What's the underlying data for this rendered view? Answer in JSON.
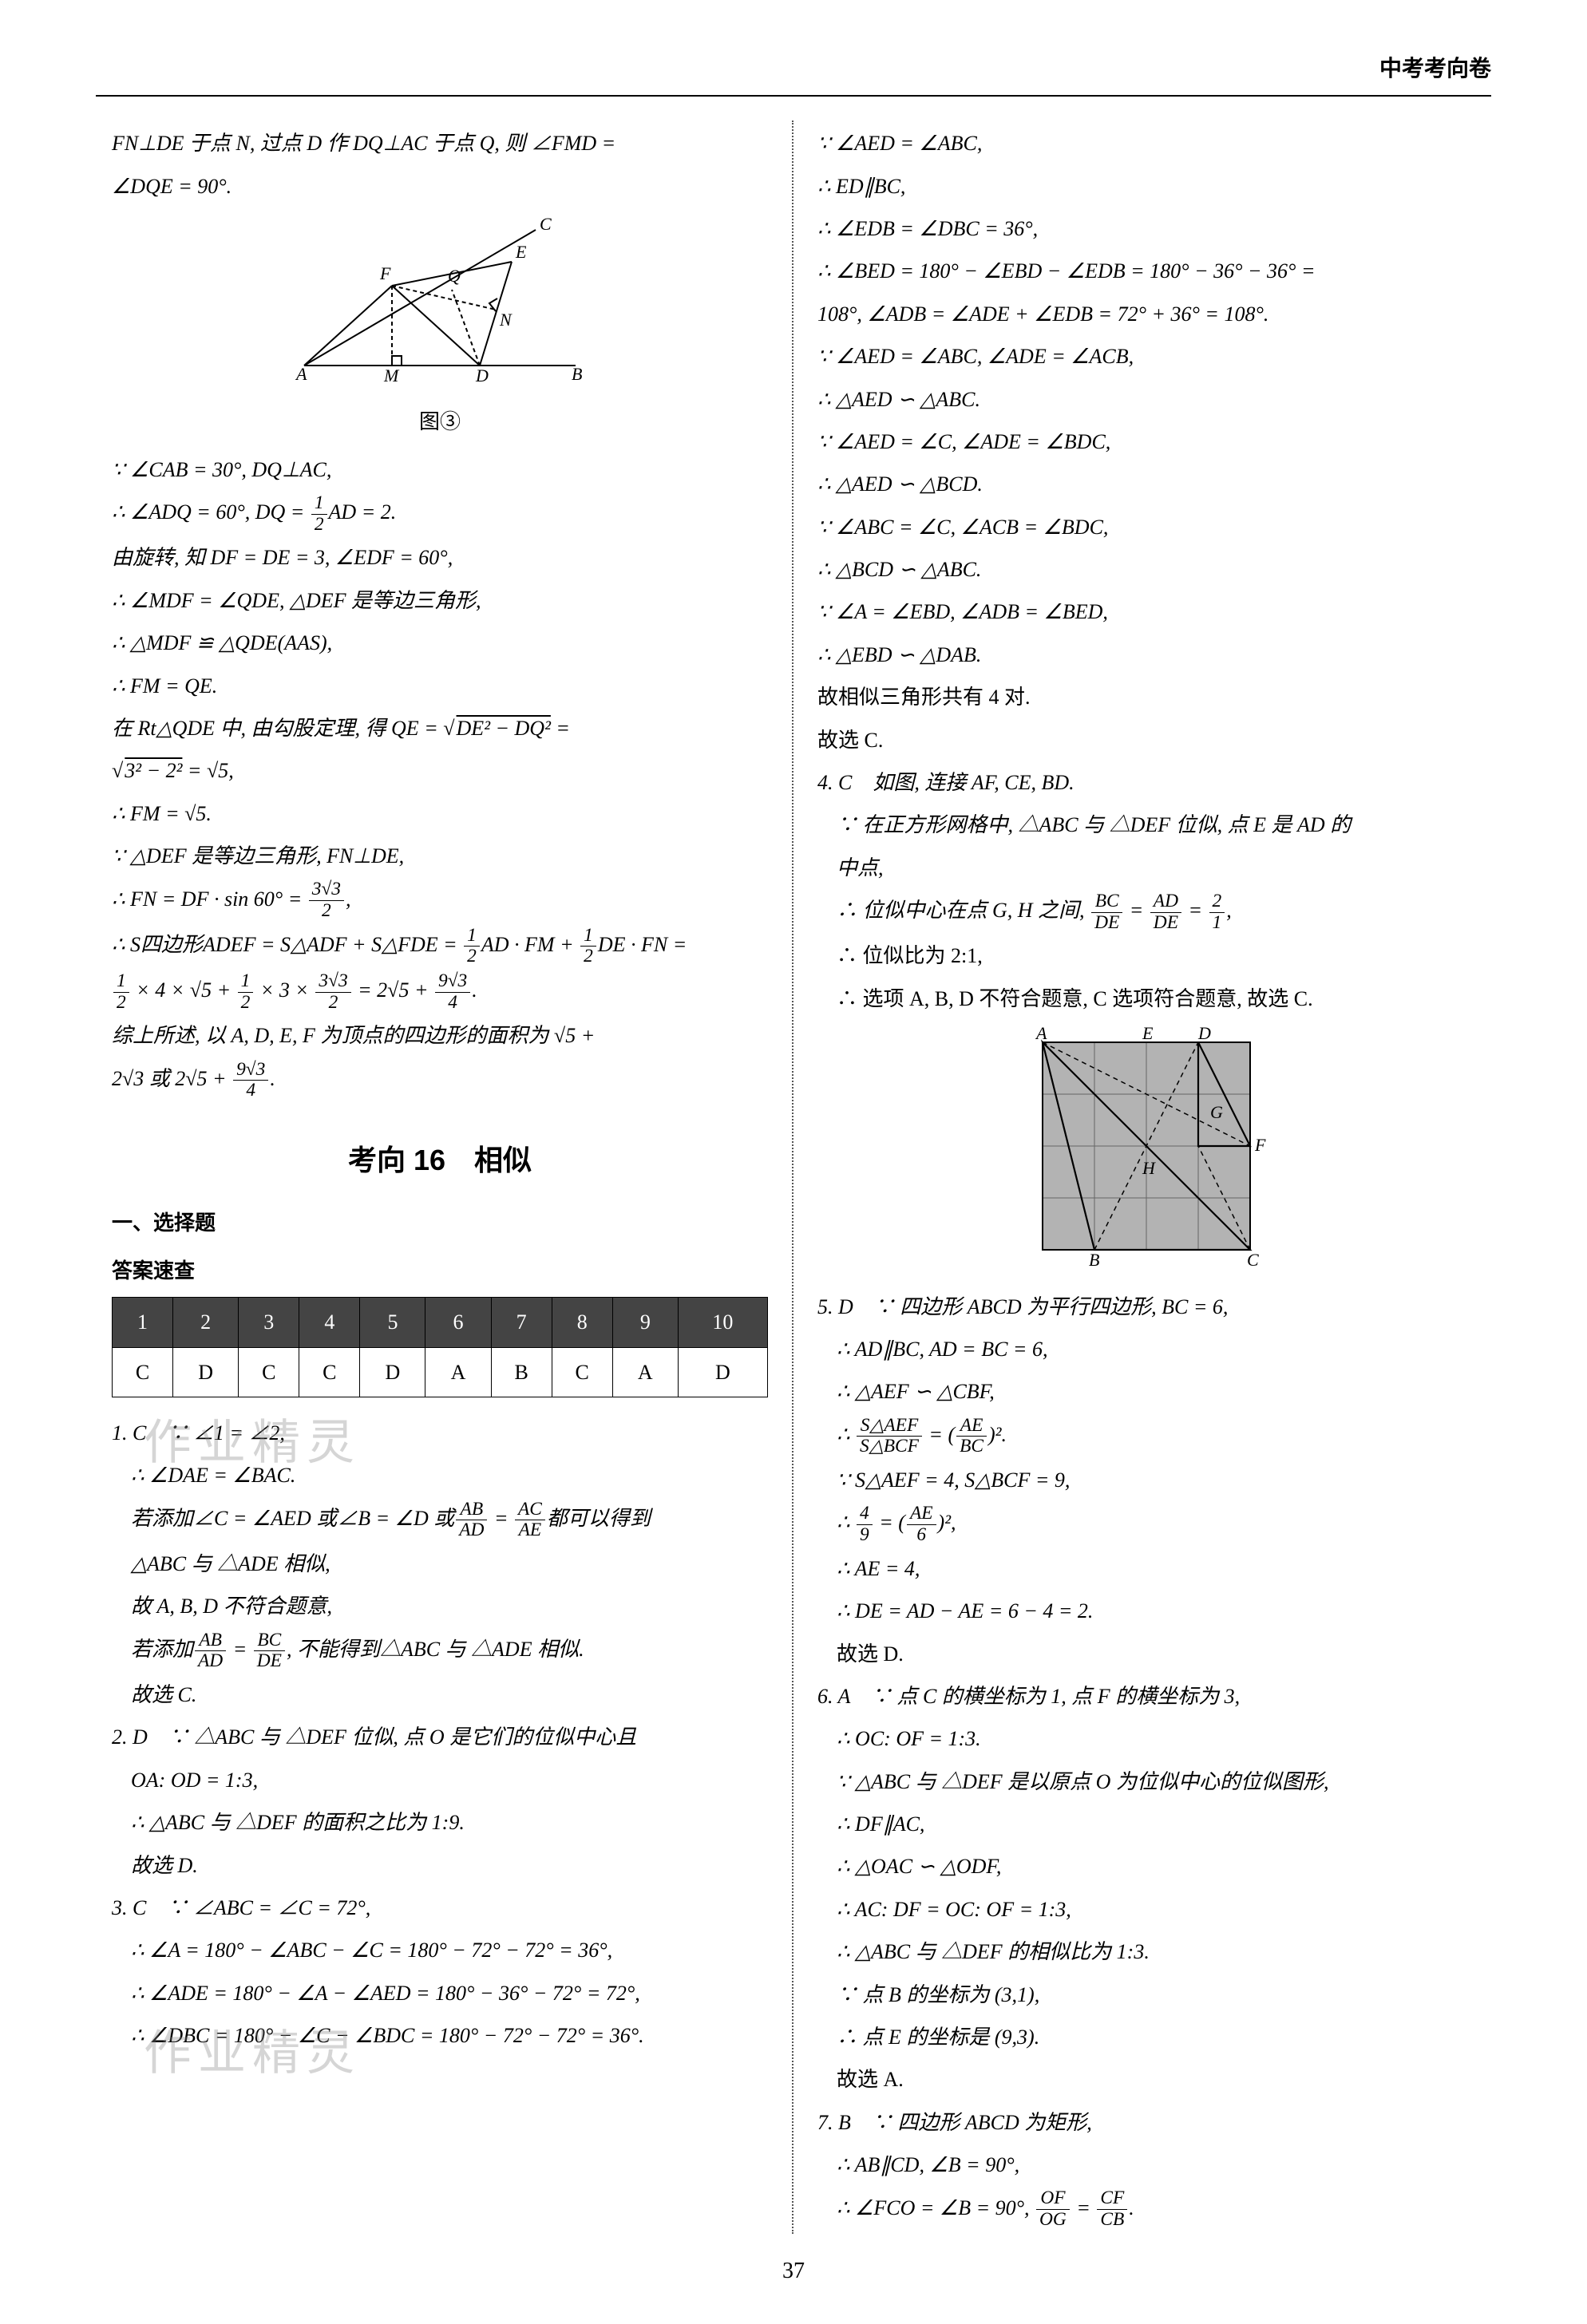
{
  "header": {
    "title": "中考考向卷"
  },
  "page_number": "37",
  "left": {
    "intro1": "FN⊥DE 于点 N, 过点 D 作 DQ⊥AC 于点 Q, 则 ∠FMD =",
    "intro2": "∠DQE = 90°.",
    "fig_label": "图③",
    "p1": "∵ ∠CAB = 30°, DQ⊥AC,",
    "p2_a": "∴ ∠ADQ = 60°, DQ = ",
    "p2_b": "AD = 2.",
    "p3": "由旋转, 知 DF = DE = 3, ∠EDF = 60°,",
    "p4": "∴ ∠MDF = ∠QDE, △DEF 是等边三角形,",
    "p5": "∴ △MDF ≌ △QDE(AAS),",
    "p6": "∴ FM = QE.",
    "p7_a": "在 Rt△QDE 中, 由勾股定理, 得 QE = ",
    "p7_b": " = ",
    "p8": "∴ FM = √5.",
    "p9": "∵ △DEF 是等边三角形, FN⊥DE,",
    "p10_a": "∴ FN = DF · sin 60° = ",
    "p11_a": "∴ S四边形ADEF = S△ADF + S△FDE = ",
    "p11_b": "AD · FM + ",
    "p11_c": "DE · FN =",
    "p12_a": " × 4 × √5 + ",
    "p12_b": " × 3 × ",
    "p12_c": " = 2√5 + ",
    "p13_a": "综上所述, 以 A, D, E, F 为顶点的四边形的面积为 √5 +",
    "p13_b": "2√3 或 2√5 + ",
    "section_title": "考向 16　相似",
    "sub1": "一、选择题",
    "sub2": "答案速查",
    "answer_cols": [
      "1",
      "2",
      "3",
      "4",
      "5",
      "6",
      "7",
      "8",
      "9",
      "10"
    ],
    "answer_vals": [
      "C",
      "D",
      "C",
      "C",
      "D",
      "A",
      "B",
      "C",
      "A",
      "D"
    ],
    "q1_0": "1. C　∵ ∠1 = ∠2,",
    "q1_1": "∴ ∠DAE = ∠BAC.",
    "q1_2a": "若添加∠C = ∠AED 或∠B = ∠D 或",
    "q1_2b": " = ",
    "q1_2c": "都可以得到",
    "q1_3": "△ABC 与 △ADE 相似,",
    "q1_4": "故 A, B, D 不符合题意,",
    "q1_5a": "若添加",
    "q1_5b": " = ",
    "q1_5c": ", 不能得到△ABC 与 △ADE 相似.",
    "q1_6": "故选 C.",
    "q2_0": "2. D　∵ △ABC 与 △DEF 位似, 点 O 是它们的位似中心且",
    "q2_1": "OA: OD = 1:3,",
    "q2_2": "∴ △ABC 与 △DEF 的面积之比为 1:9.",
    "q2_3": "故选 D.",
    "q3_0": "3. C　∵ ∠ABC = ∠C = 72°,",
    "q3_1": "∴ ∠A = 180° − ∠ABC − ∠C = 180° − 72° − 72° = 36°,",
    "q3_2": "∴ ∠ADE = 180° − ∠A − ∠AED = 180° − 36° − 72° = 72°,",
    "q3_3": "∴ ∠DBC = 180° − ∠C − ∠BDC = 180° − 72° − 72° = 36°."
  },
  "right": {
    "r1": "∵ ∠AED = ∠ABC,",
    "r2": "∴ ED∥BC,",
    "r3": "∴ ∠EDB = ∠DBC = 36°,",
    "r4": "∴ ∠BED = 180° − ∠EBD − ∠EDB = 180° − 36° − 36° =",
    "r5": "108°, ∠ADB = ∠ADE + ∠EDB = 72° + 36° = 108°.",
    "r6": "∵ ∠AED = ∠ABC, ∠ADE = ∠ACB,",
    "r7": "∴ △AED ∽ △ABC.",
    "r8": "∵ ∠AED = ∠C, ∠ADE = ∠BDC,",
    "r9": "∴ △AED ∽ △BCD.",
    "r10": "∵ ∠ABC = ∠C, ∠ACB = ∠BDC,",
    "r11": "∴ △BCD ∽ △ABC.",
    "r12": "∵ ∠A = ∠EBD, ∠ADB = ∠BED,",
    "r13": "∴ △EBD ∽ △DAB.",
    "r14": "故相似三角形共有 4 对.",
    "r15": "故选 C.",
    "q4_0": "4. C　如图, 连接 AF, CE, BD.",
    "q4_1": "∵ 在正方形网格中, △ABC 与 △DEF 位似, 点 E 是 AD 的",
    "q4_2": "中点,",
    "q4_3a": "∴ 位似中心在点 G, H 之间, ",
    "q4_3b": " = ",
    "q4_3c": " = ",
    "q4_4": "∴ 位似比为 2:1,",
    "q4_5": "∴ 选项 A, B, D 不符合题意, C 选项符合题意, 故选 C.",
    "q5_0": "5. D　∵ 四边形 ABCD 为平行四边形, BC = 6,",
    "q5_1": "∴ AD∥BC, AD = BC = 6,",
    "q5_2": "∴ △AEF ∽ △CBF,",
    "q5_3a": "∴ ",
    "q5_3b": " = (",
    "q5_3c": ")².",
    "q5_4": "∵ S△AEF = 4, S△BCF = 9,",
    "q5_5a": "∴ ",
    "q5_5b": " = (",
    "q5_5c": ")²,",
    "q5_6": "∴ AE = 4,",
    "q5_7": "∴ DE = AD − AE = 6 − 4 = 2.",
    "q5_8": "故选 D.",
    "q6_0": "6. A　∵ 点 C 的横坐标为 1, 点 F 的横坐标为 3,",
    "q6_1": "∴ OC: OF = 1:3.",
    "q6_2": "∵ △ABC 与 △DEF 是以原点 O 为位似中心的位似图形,",
    "q6_3": "∴ DF∥AC,",
    "q6_4": "∴ △OAC ∽ △ODF,",
    "q6_5": "∴ AC: DF = OC: OF = 1:3,",
    "q6_6": "∴ △ABC 与 △DEF 的相似比为 1:3.",
    "q6_7": "∵ 点 B 的坐标为 (3,1),",
    "q6_8": "∴ 点 E 的坐标是 (9,3).",
    "q6_9": "故选 A.",
    "q7_0": "7. B　∵ 四边形 ABCD 为矩形,",
    "q7_1": "∴ AB∥CD, ∠B = 90°,",
    "q7_2a": "∴ ∠FCO = ∠B = 90°, ",
    "q7_2b": " = "
  },
  "watermark1": "作业精灵",
  "watermark2": "作业精灵",
  "diagram1": {
    "stroke": "#000",
    "stroke_width": 2,
    "fill": "none",
    "labels": [
      "A",
      "B",
      "C",
      "D",
      "E",
      "F",
      "M",
      "N",
      "Q"
    ]
  },
  "diagram2": {
    "grid_fill": "#b3b3b3",
    "grid_stroke": "#666",
    "line": "#000",
    "dashed": "4,4",
    "labels": [
      "A",
      "B",
      "C",
      "D",
      "E",
      "F",
      "G",
      "H"
    ]
  }
}
